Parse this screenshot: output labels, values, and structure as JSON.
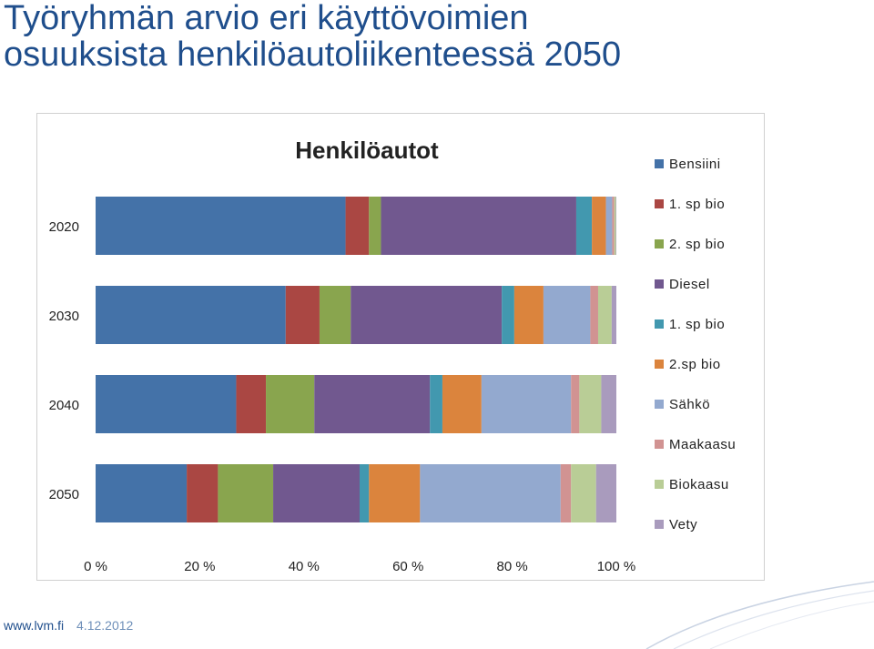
{
  "slide": {
    "title_line1": "Työryhmän arvio eri käyttövoimien",
    "title_line2": "osuuksista henkilöautoliikenteessä 2050"
  },
  "footer": {
    "url": "www.lvm.fi",
    "date": "4.12.2012"
  },
  "chart_data": {
    "type": "bar",
    "orientation": "horizontal",
    "stacked": "percent",
    "title": "Henkilöautot",
    "categories": [
      "2020",
      "2030",
      "2040",
      "2050"
    ],
    "x_ticks": [
      "0 %",
      "20 %",
      "40 %",
      "60 %",
      "80 %",
      "100 %"
    ],
    "xlim": [
      0,
      100
    ],
    "legend_position": "right",
    "grid": false,
    "series": [
      {
        "name": "Bensiini",
        "color": "#4472a8",
        "values": [
          48.0,
          36.5,
          27.0,
          17.5
        ]
      },
      {
        "name": "1. sp bio",
        "color": "#aa4743",
        "values": [
          4.5,
          6.5,
          5.7,
          6.0
        ]
      },
      {
        "name": "2. sp bio",
        "color": "#89a54e",
        "values": [
          2.3,
          6.0,
          9.3,
          10.6
        ]
      },
      {
        "name": "Diesel",
        "color": "#71588f",
        "values": [
          37.5,
          29.0,
          22.2,
          16.6
        ]
      },
      {
        "name": "1. sp bio",
        "color": "#4298af",
        "values": [
          3.0,
          2.4,
          2.4,
          1.8
        ]
      },
      {
        "name": "2.sp bio",
        "color": "#db843d",
        "values": [
          2.7,
          5.6,
          7.5,
          9.8
        ]
      },
      {
        "name": "Sähkö",
        "color": "#93a9cf",
        "values": [
          1.2,
          9.0,
          17.2,
          27.0
        ]
      },
      {
        "name": "Maakaasu",
        "color": "#d19392",
        "values": [
          0.4,
          1.5,
          1.6,
          2.0
        ]
      },
      {
        "name": "Biokaasu",
        "color": "#b9cd96",
        "values": [
          0.3,
          2.6,
          4.2,
          4.8
        ]
      },
      {
        "name": "Vety",
        "color": "#a99bbd",
        "values": [
          0.1,
          0.9,
          2.9,
          3.9
        ]
      }
    ]
  }
}
